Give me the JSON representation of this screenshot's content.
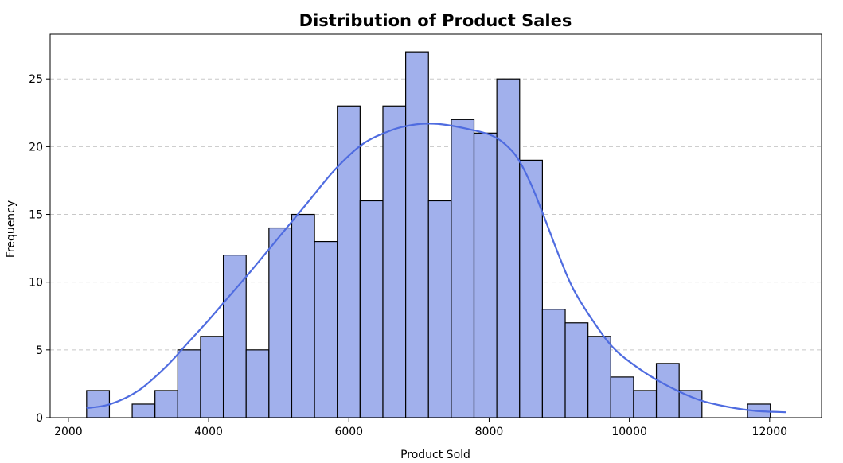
{
  "chart_data": {
    "type": "bar",
    "title": "Distribution of Product Sales",
    "xlabel": "Product Sold",
    "ylabel": "Frequency",
    "xlim": [
      1740,
      12740
    ],
    "ylim": [
      0,
      28.3
    ],
    "grid": "y",
    "xticks": [
      2000,
      4000,
      6000,
      8000,
      10000,
      12000
    ],
    "yticks": [
      0,
      5,
      10,
      15,
      20,
      25
    ],
    "bin_start": 2260,
    "bin_width": 325,
    "counts": [
      2,
      0,
      1,
      2,
      5,
      6,
      12,
      5,
      14,
      15,
      13,
      23,
      16,
      23,
      27,
      16,
      22,
      21,
      25,
      19,
      8,
      7,
      6,
      3,
      2,
      4,
      2,
      0,
      0,
      1
    ],
    "kde": {
      "x": [
        2260,
        2600,
        3000,
        3400,
        3700,
        4000,
        4300,
        4600,
        5000,
        5400,
        5800,
        6200,
        6600,
        6900,
        7150,
        7400,
        7700,
        8000,
        8200,
        8400,
        8600,
        8800,
        9000,
        9200,
        9500,
        9800,
        10200,
        10600,
        11000,
        11400,
        11800,
        12240
      ],
      "y": [
        0.7,
        1.0,
        2.0,
        3.8,
        5.5,
        7.2,
        9.0,
        10.8,
        13.3,
        15.8,
        18.3,
        20.2,
        21.2,
        21.6,
        21.7,
        21.6,
        21.3,
        20.9,
        20.3,
        19.2,
        17.2,
        14.6,
        11.9,
        9.5,
        7.0,
        5.0,
        3.4,
        2.2,
        1.3,
        0.8,
        0.5,
        0.4
      ]
    },
    "colors": {
      "bar_fill": "#a1b0ec",
      "bar_edge": "#000000",
      "kde_line": "#4f6ce0",
      "grid": "#c8c8c8"
    }
  }
}
